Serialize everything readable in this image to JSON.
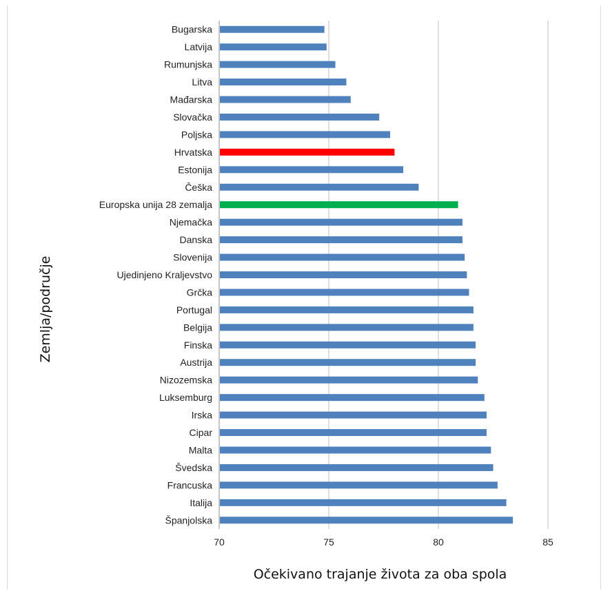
{
  "chart_data": {
    "type": "bar",
    "orientation": "horizontal",
    "title": "",
    "xlabel": "Očekivano trajanje života za oba spola",
    "ylabel": "Zemlja/područje",
    "xlim": [
      70,
      85
    ],
    "xticks": [
      70,
      75,
      80,
      85
    ],
    "grid": true,
    "categories": [
      "Bugarska",
      "Latvija",
      "Rumunjska",
      "Litva",
      "Mađarska",
      "Slovačka",
      "Poljska",
      "Hrvatska",
      "Estonija",
      "Češka",
      "Europska unija 28 zemalja",
      "Njemačka",
      "Danska",
      "Slovenija",
      "Ujedinjeno Kraljevstvo",
      "Grčka",
      "Portugal",
      "Belgija",
      "Finska",
      "Austrija",
      "Nizozemska",
      "Luksemburg",
      "Irska",
      "Cipar",
      "Malta",
      "Švedska",
      "Francuska",
      "Italija",
      "Španjolska"
    ],
    "values": [
      74.8,
      74.9,
      75.3,
      75.8,
      76.0,
      77.3,
      77.8,
      78.0,
      78.4,
      79.1,
      80.9,
      81.1,
      81.1,
      81.2,
      81.3,
      81.4,
      81.6,
      81.6,
      81.7,
      81.7,
      81.8,
      82.1,
      82.2,
      82.2,
      82.4,
      82.5,
      82.7,
      83.1,
      83.4
    ],
    "colors": {
      "default": "#4f81bd",
      "Hrvatska": "#ff0000",
      "Europska unija 28 zemalja": "#00b050"
    }
  }
}
